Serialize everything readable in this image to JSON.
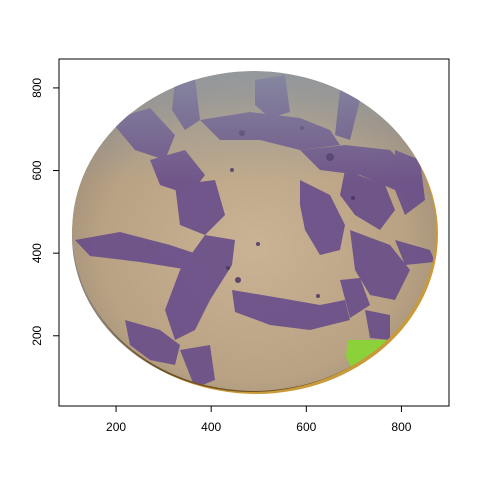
{
  "plot": {
    "xlim": [
      80,
      900
    ],
    "ylim": [
      30,
      870
    ],
    "x_ticks": [
      {
        "value": 200,
        "label": "200"
      },
      {
        "value": 400,
        "label": "400"
      },
      {
        "value": 600,
        "label": "600"
      },
      {
        "value": 800,
        "label": "800"
      }
    ],
    "y_ticks": [
      {
        "value": 200,
        "label": "200"
      },
      {
        "value": 400,
        "label": "400"
      },
      {
        "value": 600,
        "label": "600"
      },
      {
        "value": 800,
        "label": "800"
      }
    ],
    "image": {
      "description_colors": {
        "background": "#bfa888",
        "stain": "#6a4f8a",
        "stain_dark": "#4a3566",
        "edge_rim": "#c89a3a",
        "highlight": "#8bd23a",
        "bluish_top": "#9aa6b0"
      }
    }
  }
}
